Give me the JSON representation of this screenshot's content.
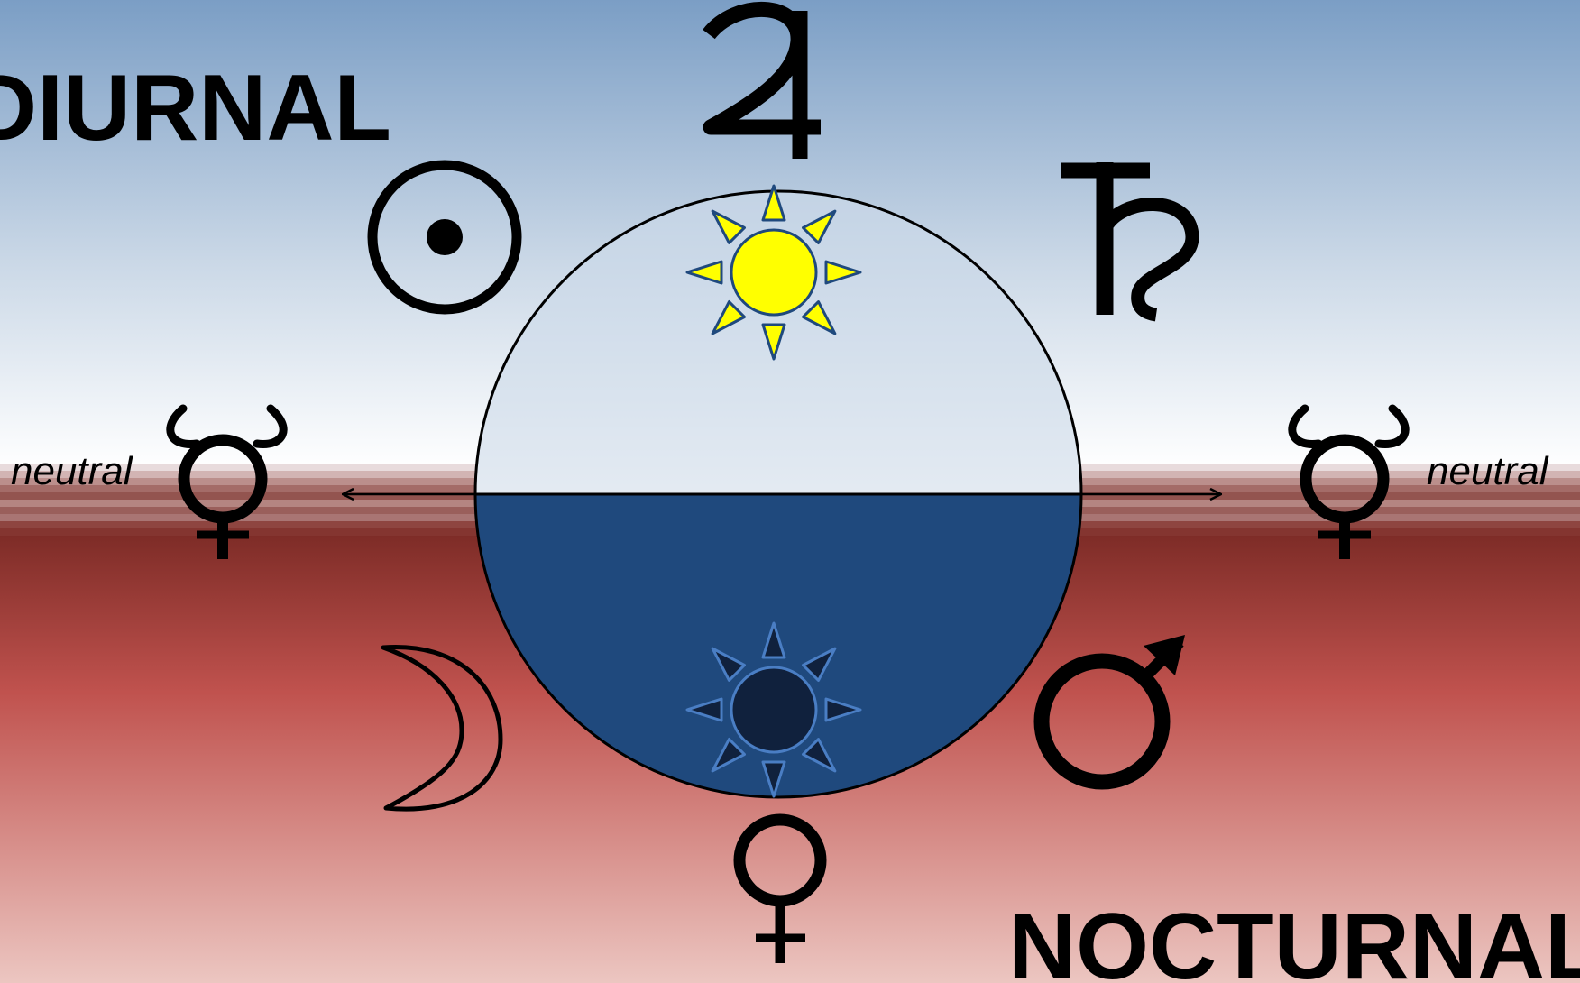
{
  "labels": {
    "diurnal": "DIURNAL",
    "nocturnal": "NOCTURNAL",
    "neutral_left": "neutral",
    "neutral_right": "neutral"
  },
  "planets": {
    "diurnal": [
      "sun",
      "jupiter",
      "saturn"
    ],
    "nocturnal": [
      "moon",
      "venus",
      "mars"
    ],
    "neutral": [
      "mercury"
    ]
  },
  "colors": {
    "sky_top": "#7b9ec5",
    "sky_bottom": "#ffffff",
    "night_top": "#7e2c27",
    "night_mid": "#c0524e",
    "night_bottom": "#ecc6c1",
    "day_half": "#ffffff",
    "night_half": "#1f497d",
    "sun_fill": "#ffff00",
    "sun_stroke": "#1f497d",
    "dark_sun_fill": "#10213d",
    "dark_sun_stroke": "#4a7ec4"
  }
}
